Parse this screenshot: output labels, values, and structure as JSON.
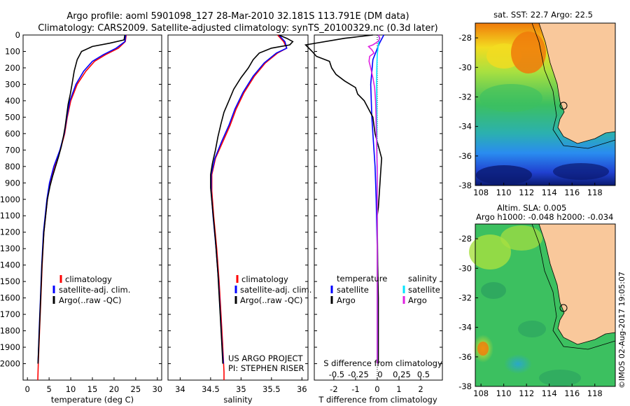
{
  "header": {
    "title_line1": "Argo profile: aoml 5901098_127 28-Mar-2010 32.181S 113.791E (DM data)",
    "title_line2": "Climatology: CARS2009. Satellite-adjusted climatology: synTS_20100329.nc (0.3d later)"
  },
  "colors": {
    "climatology": "#ff0000",
    "satellite": "#0000ff",
    "argo": "#000000",
    "sat_salinity": "#00e5ff",
    "argo_salinity": "#e020e0",
    "land": "#f9c89b"
  },
  "depth_axis": {
    "ylim": [
      0,
      2100
    ],
    "ticks": [
      "0",
      "100",
      "200",
      "300",
      "400",
      "500",
      "600",
      "700",
      "800",
      "900",
      "1000",
      "1100",
      "1200",
      "1300",
      "1400",
      "1500",
      "1600",
      "1700",
      "1800",
      "1900",
      "2000"
    ]
  },
  "legend_temp": {
    "clim": "climatology",
    "sat": "satellite-adj. clim.",
    "argo": "Argo(..raw -QC)"
  },
  "legend_sal": {
    "clim": "climatology",
    "sat": "satellite-adj. clim.",
    "argo": "Argo(..raw -QC)"
  },
  "legend_diff": {
    "temp_head": "temperature",
    "sal_head": "salinity",
    "t_sat": "satellite",
    "t_argo": "Argo",
    "s_sat": "satellite",
    "s_argo": "Argo"
  },
  "project": {
    "line1": "US ARGO PROJECT",
    "line2": "PI: STEPHEN RISER"
  },
  "map1": {
    "title": "sat. SST: 22.7  Argo: 22.5",
    "yticks": [
      "-28",
      "-30",
      "-32",
      "-34",
      "-36",
      "-38"
    ],
    "xticks": [
      "108",
      "110",
      "112",
      "114",
      "116",
      "118"
    ]
  },
  "map2": {
    "title1": "Altim. SLA: 0.005",
    "title2": "Argo h1000: -0.048 h2000: -0.034",
    "yticks": [
      "-28",
      "-30",
      "-32",
      "-34",
      "-36",
      "-38"
    ],
    "xticks": [
      "108",
      "110",
      "112",
      "114",
      "116",
      "118"
    ]
  },
  "credit": "©IMOS 02-Aug-2017 19:05:07",
  "chart_data": [
    {
      "type": "line",
      "id": "temperature",
      "xlabel": "temperature (deg C)",
      "xlim": [
        -1,
        31
      ],
      "ylim": [
        0,
        2100
      ],
      "xticks": [
        "0",
        "5",
        "10",
        "15",
        "20",
        "25",
        "30"
      ],
      "series": [
        {
          "name": "climatology",
          "color": "#ff0000",
          "points": [
            [
              22.8,
              0
            ],
            [
              22.6,
              40
            ],
            [
              21,
              80
            ],
            [
              18,
              120
            ],
            [
              15.5,
              160
            ],
            [
              13.5,
              220
            ],
            [
              11.5,
              300
            ],
            [
              10,
              400
            ],
            [
              9.2,
              500
            ],
            [
              8.6,
              600
            ],
            [
              7.6,
              700
            ],
            [
              6.2,
              800
            ],
            [
              5.2,
              900
            ],
            [
              4.6,
              1000
            ],
            [
              3.8,
              1200
            ],
            [
              3.4,
              1400
            ],
            [
              3.1,
              1600
            ],
            [
              2.8,
              1800
            ],
            [
              2.5,
              2000
            ],
            [
              2.4,
              2100
            ]
          ]
        },
        {
          "name": "satellite-adj. clim.",
          "color": "#0000ff",
          "points": [
            [
              22.7,
              0
            ],
            [
              22.5,
              40
            ],
            [
              20.5,
              80
            ],
            [
              17.5,
              120
            ],
            [
              15,
              160
            ],
            [
              13,
              220
            ],
            [
              11.2,
              300
            ],
            [
              9.8,
              400
            ],
            [
              9.1,
              500
            ],
            [
              8.5,
              600
            ],
            [
              7.5,
              700
            ],
            [
              6.1,
              800
            ],
            [
              5.1,
              900
            ],
            [
              4.5,
              1000
            ],
            [
              3.7,
              1200
            ],
            [
              3.3,
              1400
            ],
            [
              3,
              1600
            ],
            [
              2.7,
              1800
            ],
            [
              2.45,
              2000
            ]
          ]
        },
        {
          "name": "Argo(..raw -QC)",
          "color": "#000000",
          "points": [
            [
              22.5,
              0
            ],
            [
              22.3,
              30
            ],
            [
              19,
              50
            ],
            [
              15,
              70
            ],
            [
              12.5,
              100
            ],
            [
              11.5,
              150
            ],
            [
              10.8,
              220
            ],
            [
              10.3,
              300
            ],
            [
              9.9,
              360
            ],
            [
              9.4,
              420
            ],
            [
              9.1,
              480
            ],
            [
              8.7,
              560
            ],
            [
              8.3,
              620
            ],
            [
              7.8,
              680
            ],
            [
              7.2,
              740
            ],
            [
              6.5,
              800
            ],
            [
              5.8,
              860
            ],
            [
              5.2,
              920
            ],
            [
              4.6,
              1000
            ],
            [
              3.8,
              1200
            ],
            [
              3.35,
              1400
            ],
            [
              3.05,
              1600
            ],
            [
              2.75,
              1800
            ],
            [
              2.45,
              2000
            ]
          ]
        }
      ]
    },
    {
      "type": "line",
      "id": "salinity",
      "xlabel": "salinity",
      "xlim": [
        33.8,
        36.1
      ],
      "ylim": [
        0,
        2100
      ],
      "xticks": [
        "34",
        "34.5",
        "35",
        "35.5",
        "36"
      ],
      "series": [
        {
          "name": "climatology",
          "color": "#ff0000",
          "points": [
            [
              35.6,
              0
            ],
            [
              35.7,
              40
            ],
            [
              35.75,
              80
            ],
            [
              35.6,
              110
            ],
            [
              35.4,
              170
            ],
            [
              35.22,
              250
            ],
            [
              35.05,
              350
            ],
            [
              34.92,
              450
            ],
            [
              34.82,
              550
            ],
            [
              34.7,
              650
            ],
            [
              34.58,
              750
            ],
            [
              34.52,
              850
            ],
            [
              34.52,
              950
            ],
            [
              34.55,
              1100
            ],
            [
              34.6,
              1300
            ],
            [
              34.64,
              1500
            ],
            [
              34.67,
              1700
            ],
            [
              34.7,
              1900
            ],
            [
              34.72,
              2050
            ],
            [
              34.72,
              2100
            ]
          ]
        },
        {
          "name": "satellite-adj. clim.",
          "color": "#0000ff",
          "points": [
            [
              35.62,
              0
            ],
            [
              35.72,
              40
            ],
            [
              35.75,
              80
            ],
            [
              35.58,
              110
            ],
            [
              35.38,
              170
            ],
            [
              35.2,
              250
            ],
            [
              35.03,
              350
            ],
            [
              34.9,
              450
            ],
            [
              34.8,
              550
            ],
            [
              34.68,
              650
            ],
            [
              34.57,
              750
            ],
            [
              34.51,
              850
            ],
            [
              34.51,
              950
            ],
            [
              34.54,
              1100
            ],
            [
              34.59,
              1300
            ],
            [
              34.63,
              1500
            ],
            [
              34.66,
              1700
            ],
            [
              34.69,
              1900
            ],
            [
              34.71,
              2000
            ]
          ]
        },
        {
          "name": "Argo(..raw -QC)",
          "color": "#000000",
          "points": [
            [
              35.62,
              0
            ],
            [
              35.75,
              20
            ],
            [
              35.85,
              40
            ],
            [
              35.8,
              60
            ],
            [
              35.5,
              80
            ],
            [
              35.3,
              110
            ],
            [
              35.2,
              150
            ],
            [
              35.12,
              200
            ],
            [
              35,
              260
            ],
            [
              34.88,
              330
            ],
            [
              34.8,
              400
            ],
            [
              34.72,
              470
            ],
            [
              34.67,
              540
            ],
            [
              34.62,
              620
            ],
            [
              34.58,
              700
            ],
            [
              34.53,
              780
            ],
            [
              34.5,
              850
            ],
            [
              34.5,
              930
            ],
            [
              34.53,
              1050
            ],
            [
              34.58,
              1250
            ],
            [
              34.62,
              1450
            ],
            [
              34.65,
              1650
            ],
            [
              34.68,
              1850
            ],
            [
              34.7,
              2000
            ]
          ]
        }
      ]
    },
    {
      "type": "line",
      "id": "difference",
      "xlabel": "T difference from climatology",
      "xlabel2": "S difference from climatology",
      "xlim": [
        -2.9,
        3.0
      ],
      "ylim": [
        0,
        2100
      ],
      "xticks": [
        "-2",
        "-1",
        "0",
        "1",
        "2"
      ],
      "xticks2": [
        "-0.5",
        "-0.25",
        "0",
        "0.25",
        "0.5"
      ],
      "series": [
        {
          "name": "T satellite",
          "color": "#0000ff",
          "points": [
            [
              0.3,
              0
            ],
            [
              0.1,
              50
            ],
            [
              -0.2,
              150
            ],
            [
              -0.3,
              300
            ],
            [
              -0.25,
              500
            ],
            [
              -0.2,
              600
            ],
            [
              -0.1,
              800
            ],
            [
              -0.05,
              1000
            ],
            [
              0,
              1300
            ],
            [
              0,
              1600
            ],
            [
              0,
              1900
            ],
            [
              0,
              2000
            ]
          ]
        },
        {
          "name": "T Argo",
          "color": "#000000",
          "points": [
            [
              -0.2,
              0
            ],
            [
              -1.5,
              20
            ],
            [
              -3.3,
              60
            ],
            [
              -3.0,
              100
            ],
            [
              -2.8,
              130
            ],
            [
              -2.2,
              160
            ],
            [
              -2.1,
              200
            ],
            [
              -1.9,
              240
            ],
            [
              -1.5,
              280
            ],
            [
              -1.0,
              320
            ],
            [
              -0.9,
              360
            ],
            [
              -0.6,
              400
            ],
            [
              -0.4,
              450
            ],
            [
              -0.2,
              500
            ],
            [
              -0.1,
              600
            ],
            [
              0.1,
              700
            ],
            [
              0.2,
              750
            ],
            [
              0.15,
              850
            ],
            [
              0.1,
              950
            ],
            [
              0.05,
              1050
            ],
            [
              0,
              1100
            ],
            [
              0.02,
              1400
            ],
            [
              0.05,
              1600
            ],
            [
              0.05,
              1800
            ],
            [
              0.05,
              2000
            ]
          ]
        },
        {
          "name": "S satellite",
          "color": "#00e5ff",
          "points": [
            [
              0.05,
              0
            ],
            [
              0.1,
              20
            ],
            [
              0.05,
              60
            ],
            [
              0.0,
              120
            ],
            [
              -0.02,
              200
            ],
            [
              -0.03,
              300
            ],
            [
              -0.02,
              500
            ],
            [
              -0.01,
              800
            ],
            [
              0,
              1100
            ],
            [
              0,
              2000
            ]
          ]
        },
        {
          "name": "S Argo",
          "color": "#e020e0",
          "points": [
            [
              0.05,
              0
            ],
            [
              0.12,
              20
            ],
            [
              0.03,
              40
            ],
            [
              -0.2,
              60
            ],
            [
              -0.4,
              70
            ],
            [
              -0.25,
              90
            ],
            [
              -0.15,
              110
            ],
            [
              -0.35,
              130
            ],
            [
              -0.38,
              160
            ],
            [
              -0.3,
              200
            ],
            [
              -0.2,
              260
            ],
            [
              -0.12,
              320
            ],
            [
              -0.08,
              400
            ],
            [
              -0.06,
              480
            ],
            [
              -0.05,
              560
            ],
            [
              -0.03,
              640
            ],
            [
              -0.02,
              720
            ],
            [
              0,
              800
            ],
            [
              0,
              1000
            ],
            [
              0,
              1500
            ],
            [
              0,
              2000
            ]
          ]
        }
      ]
    }
  ]
}
